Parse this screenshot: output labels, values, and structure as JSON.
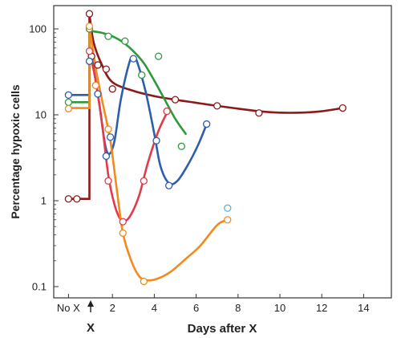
{
  "chart_data": {
    "type": "line",
    "title": "",
    "xlabel": "Days after X",
    "ylabel": "Percentage hypoxic cells",
    "y_scale": "log",
    "ylim": [
      0.1,
      100
    ],
    "xlim": [
      -0.6,
      14
    ],
    "x_ticks": [
      {
        "value": -0.1,
        "label": "No X"
      },
      {
        "value": 2,
        "label": "2"
      },
      {
        "value": 4,
        "label": "4"
      },
      {
        "value": 6,
        "label": "6"
      },
      {
        "value": 8,
        "label": "8"
      },
      {
        "value": 10,
        "label": "10"
      },
      {
        "value": 12,
        "label": "12"
      },
      {
        "value": 14,
        "label": "14"
      }
    ],
    "y_ticks": [
      {
        "value": 0.1,
        "label": "0.1"
      },
      {
        "value": 1,
        "label": "1"
      },
      {
        "value": 10,
        "label": "10"
      },
      {
        "value": 100,
        "label": "100"
      }
    ],
    "annotation": {
      "label": "X",
      "x": 0.9
    },
    "grid": false,
    "series": [
      {
        "color": "#8b1a1a",
        "step_line": [
          [
            -0.1,
            1.05
          ],
          [
            0.9,
            1.05
          ],
          [
            0.9,
            150
          ]
        ],
        "curve": [
          [
            0.9,
            150
          ],
          [
            1.1,
            70
          ],
          [
            1.5,
            38
          ],
          [
            2.0,
            24
          ],
          [
            3.0,
            19
          ],
          [
            4.0,
            16.5
          ],
          [
            5.0,
            15
          ],
          [
            6.0,
            13.8
          ],
          [
            7.0,
            12.7
          ],
          [
            8.0,
            11.8
          ],
          [
            9.0,
            11.0
          ],
          [
            10.0,
            10.6
          ],
          [
            11.0,
            10.6
          ],
          [
            12.0,
            11.0
          ],
          [
            13.0,
            12.0
          ]
        ],
        "points": [
          [
            -0.1,
            1.05
          ],
          [
            0.3,
            1.05
          ],
          [
            0.9,
            150
          ],
          [
            1.0,
            48
          ],
          [
            1.3,
            38
          ],
          [
            1.7,
            34
          ],
          [
            2.0,
            20
          ],
          [
            5.0,
            15
          ],
          [
            7.0,
            12.7
          ],
          [
            9.0,
            10.5
          ],
          [
            13.0,
            12.0
          ]
        ]
      },
      {
        "color": "#2e9a3e",
        "step_line": [
          [
            -0.1,
            14
          ],
          [
            0.9,
            14
          ],
          [
            0.9,
            95
          ]
        ],
        "curve": [
          [
            0.9,
            95
          ],
          [
            1.5,
            90
          ],
          [
            2.0,
            82
          ],
          [
            2.5,
            70
          ],
          [
            3.0,
            55
          ],
          [
            3.5,
            40
          ],
          [
            4.0,
            25
          ],
          [
            4.5,
            15
          ],
          [
            5.0,
            9
          ],
          [
            5.5,
            6
          ]
        ],
        "points": [
          [
            -0.1,
            14
          ],
          [
            0.9,
            100
          ],
          [
            1.8,
            82
          ],
          [
            2.6,
            72
          ],
          [
            3.4,
            29
          ],
          [
            4.2,
            48
          ],
          [
            5.3,
            4.3
          ]
        ]
      },
      {
        "color": "#2d5fa8",
        "step_line": [
          [
            -0.1,
            17
          ],
          [
            0.9,
            17
          ],
          [
            0.9,
            65
          ]
        ],
        "curve": [
          [
            0.9,
            65
          ],
          [
            1.1,
            35
          ],
          [
            1.4,
            12
          ],
          [
            1.65,
            4.5
          ],
          [
            1.85,
            3.5
          ],
          [
            2.1,
            5
          ],
          [
            2.4,
            15
          ],
          [
            2.8,
            40
          ],
          [
            3.0,
            48
          ],
          [
            3.2,
            40
          ],
          [
            3.6,
            18
          ],
          [
            4.0,
            6
          ],
          [
            4.3,
            2.5
          ],
          [
            4.7,
            1.6
          ],
          [
            5.1,
            1.7
          ],
          [
            5.6,
            2.6
          ],
          [
            6.1,
            4.5
          ],
          [
            6.5,
            7.8
          ]
        ],
        "points": [
          [
            -0.1,
            17
          ],
          [
            0.9,
            42
          ],
          [
            1.3,
            17.5
          ],
          [
            1.7,
            3.3
          ],
          [
            1.9,
            5.5
          ],
          [
            3.0,
            45
          ],
          [
            4.1,
            5.0
          ],
          [
            4.7,
            1.5
          ],
          [
            6.5,
            7.8
          ]
        ]
      },
      {
        "color": "#e23a4a",
        "step_line": [],
        "curve": [
          [
            0.9,
            55
          ],
          [
            1.2,
            25
          ],
          [
            1.5,
            8
          ],
          [
            1.8,
            2
          ],
          [
            2.1,
            0.9
          ],
          [
            2.4,
            0.6
          ],
          [
            2.7,
            0.6
          ],
          [
            3.0,
            0.78
          ],
          [
            3.3,
            1.2
          ],
          [
            3.7,
            2.8
          ],
          [
            4.2,
            6.5
          ],
          [
            4.6,
            10.5
          ]
        ],
        "points": [
          [
            0.9,
            55
          ],
          [
            1.2,
            22
          ],
          [
            1.8,
            1.7
          ],
          [
            2.5,
            0.57
          ],
          [
            3.5,
            1.7
          ],
          [
            4.6,
            11
          ]
        ]
      },
      {
        "color": "#f18a1f",
        "step_line": [
          [
            -0.1,
            12
          ],
          [
            0.9,
            12
          ],
          [
            0.9,
            107
          ]
        ],
        "curve": [
          [
            0.9,
            107
          ],
          [
            1.2,
            35
          ],
          [
            1.5,
            15
          ],
          [
            1.9,
            5
          ],
          [
            2.2,
            1.4
          ],
          [
            2.5,
            0.42
          ],
          [
            2.9,
            0.2
          ],
          [
            3.3,
            0.13
          ],
          [
            3.7,
            0.118
          ],
          [
            4.2,
            0.125
          ],
          [
            4.8,
            0.15
          ],
          [
            5.5,
            0.21
          ],
          [
            6.2,
            0.3
          ],
          [
            7.0,
            0.52
          ],
          [
            7.5,
            0.6
          ]
        ],
        "points": [
          [
            -0.1,
            11.8
          ],
          [
            0.9,
            107
          ],
          [
            1.2,
            22
          ],
          [
            1.8,
            6.8
          ],
          [
            2.5,
            0.42
          ],
          [
            3.5,
            0.115
          ],
          [
            7.5,
            0.6
          ]
        ]
      },
      {
        "color": "#4fb8d8",
        "step_line": [],
        "curve": [],
        "points": [
          [
            7.5,
            0.82
          ]
        ]
      }
    ]
  }
}
